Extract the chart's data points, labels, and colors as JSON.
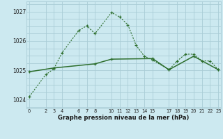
{
  "xlabel": "Graphe pression niveau de la mer (hPa)",
  "bg_color": "#cce9f0",
  "grid_color_major": "#aacdd6",
  "grid_color_minor": "#bbdae0",
  "line_color": "#2d6e2d",
  "series1_x": [
    0,
    2,
    3,
    4,
    6,
    7,
    8,
    10,
    11,
    12,
    13,
    14,
    15,
    17,
    18,
    19,
    20,
    21,
    22,
    23
  ],
  "series1_y": [
    1024.1,
    1024.85,
    1025.05,
    1025.6,
    1026.35,
    1026.52,
    1026.25,
    1026.97,
    1026.82,
    1026.55,
    1025.85,
    1025.48,
    1025.35,
    1025.02,
    1025.32,
    1025.55,
    1025.55,
    1025.32,
    1025.32,
    1025.02
  ],
  "series2_x": [
    0,
    3,
    8,
    10,
    15,
    17,
    20,
    23
  ],
  "series2_y": [
    1024.95,
    1025.08,
    1025.22,
    1025.38,
    1025.4,
    1025.02,
    1025.48,
    1025.02
  ],
  "ylim": [
    1023.7,
    1027.35
  ],
  "yticks": [
    1024,
    1025,
    1026,
    1027
  ],
  "xlim": [
    -0.3,
    23.3
  ],
  "x_ticks": [
    0,
    2,
    3,
    4,
    6,
    7,
    8,
    10,
    11,
    12,
    13,
    14,
    15,
    17,
    18,
    19,
    20,
    21,
    22,
    23
  ]
}
